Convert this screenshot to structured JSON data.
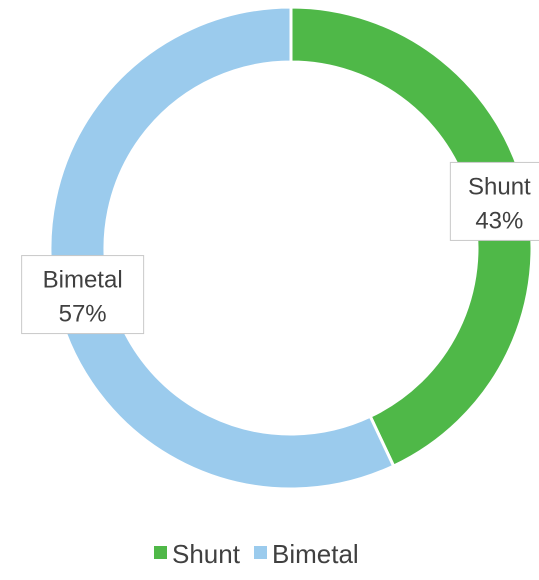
{
  "chart_data": {
    "type": "pie",
    "variant": "doughnut",
    "categories": [
      "Shunt",
      "Bimetal"
    ],
    "values": [
      43,
      57
    ],
    "value_labels": [
      "43%",
      "57%"
    ],
    "colors": [
      "#4fb848",
      "#9bcbed"
    ],
    "legend": {
      "position": "bottom",
      "entries": [
        "Shunt",
        "Bimetal"
      ]
    }
  }
}
